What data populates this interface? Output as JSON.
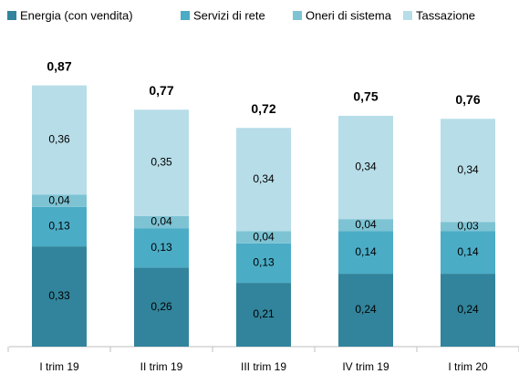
{
  "chart_data": {
    "type": "stacked-bar",
    "categories": [
      "I trim 19",
      "II trim 19",
      "III trim 19",
      "IV trim 19",
      "I trim 20"
    ],
    "series": [
      {
        "name": "Energia (con vendita)",
        "color": "#31849b",
        "values": [
          0.33,
          0.26,
          0.21,
          0.24,
          0.24
        ],
        "value_labels": [
          "0,33",
          "0,26",
          "0,21",
          "0,24",
          "0,24"
        ]
      },
      {
        "name": "Servizi di rete",
        "color": "#4bacc6",
        "values": [
          0.13,
          0.13,
          0.13,
          0.14,
          0.14
        ],
        "value_labels": [
          "0,13",
          "0,13",
          "0,13",
          "0,14",
          "0,14"
        ]
      },
      {
        "name": "Oneri di sistema",
        "color": "#7dc3d3",
        "values": [
          0.04,
          0.04,
          0.04,
          0.04,
          0.03
        ],
        "value_labels": [
          "0,04",
          "0,04",
          "0,04",
          "0,04",
          "0,03"
        ]
      },
      {
        "name": "Tassazione",
        "color": "#b7dde8",
        "values": [
          0.36,
          0.35,
          0.34,
          0.34,
          0.34
        ],
        "value_labels": [
          "0,36",
          "0,35",
          "0,34",
          "0,34",
          "0,34"
        ]
      }
    ],
    "totals": {
      "values": [
        0.87,
        0.77,
        0.72,
        0.75,
        0.76
      ],
      "value_labels": [
        "0,87",
        "0,77",
        "0,72",
        "0,75",
        "0,76"
      ]
    }
  }
}
